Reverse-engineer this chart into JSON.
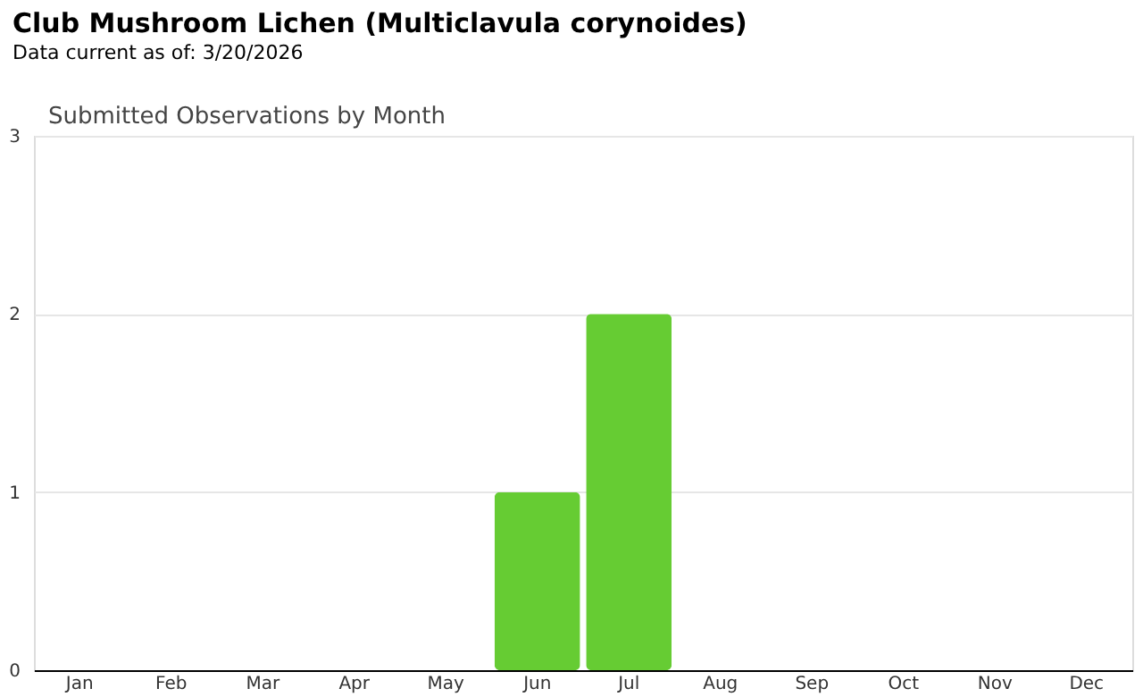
{
  "chart_data": {
    "type": "bar",
    "title": "Club Mushroom Lichen   (Multiclavula corynoides)",
    "subtitle": "Data current as of: 3/20/2026",
    "annotations": [
      "Submitted Observations by Month"
    ],
    "categories": [
      "Jan",
      "Feb",
      "Mar",
      "Apr",
      "May",
      "Jun",
      "Jul",
      "Aug",
      "Sep",
      "Oct",
      "Nov",
      "Dec"
    ],
    "values": [
      0,
      0,
      0,
      0,
      0,
      1,
      2,
      0,
      0,
      0,
      0,
      0
    ],
    "color": "#66cc33",
    "ylim": [
      0,
      3
    ],
    "yticks": [
      0,
      1,
      2,
      3
    ],
    "grid": "y"
  }
}
